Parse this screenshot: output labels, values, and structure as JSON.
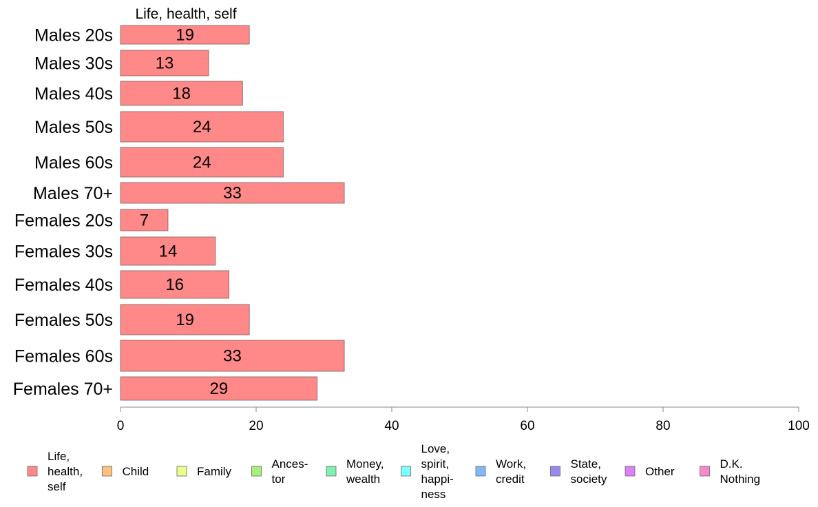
{
  "chart_data": {
    "type": "bar",
    "orientation": "horizontal",
    "title": "Life, health, self",
    "categories": [
      "Males 20s",
      "Males 30s",
      "Males 40s",
      "Males 50s",
      "Males 60s",
      "Males 70+",
      "Females 20s",
      "Females 30s",
      "Females 40s",
      "Females 50s",
      "Females 60s",
      "Females 70+"
    ],
    "series": [
      {
        "name": "Life, health, self",
        "color": "#ff8888",
        "values": [
          19,
          13,
          18,
          24,
          24,
          33,
          7,
          14,
          16,
          19,
          33,
          29
        ]
      }
    ],
    "data_labels": [
      "19",
      "13",
      "18",
      "24",
      "24",
      "33",
      "7",
      "14",
      "16",
      "19",
      "33",
      "29"
    ],
    "xlim": [
      0,
      100
    ],
    "xticks": [
      0,
      20,
      40,
      60,
      80,
      100
    ],
    "xlabel": "",
    "ylabel": "",
    "grid": false,
    "legend": {
      "position": "bottom",
      "items": [
        {
          "label": "Life,\nhealth,\nself",
          "color": "#ff8888"
        },
        {
          "label": "Child",
          "color": "#ffc080"
        },
        {
          "label": "Family",
          "color": "#eeff88"
        },
        {
          "label": "Ances-\ntor",
          "color": "#a8f07c"
        },
        {
          "label": "Money,\nwealth",
          "color": "#80f0b0"
        },
        {
          "label": "Love,\nspirit,\nhappi-\nness",
          "color": "#80ffff"
        },
        {
          "label": "Work,\ncredit",
          "color": "#80b8f8"
        },
        {
          "label": "State,\nsociety",
          "color": "#9988f0"
        },
        {
          "label": "Other",
          "color": "#e080f8"
        },
        {
          "label": "D.K.\nNothing",
          "color": "#f888cc"
        }
      ]
    }
  }
}
